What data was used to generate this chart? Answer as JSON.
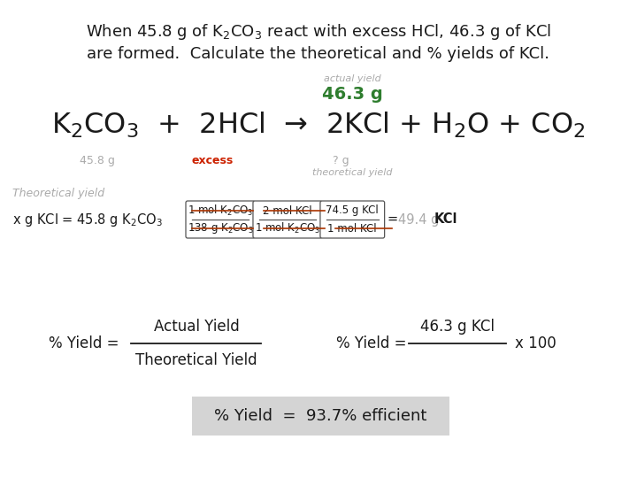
{
  "bg_color": "#ffffff",
  "dark": "#1a1a1a",
  "green": "#2e7d2e",
  "red": "#cc2200",
  "lgray": "#aaaaaa",
  "box_bg": "#d8d8d8",
  "title1": "When 45.8 g of K$_2$CO$_3$ react with excess HCl, 46.3 g of KCl",
  "title2": "are formed.  Calculate the theoretical and % yields of KCl.",
  "actual_yield_lbl": "actual yield",
  "actual_yield_val": "46.3 g",
  "equation": "K$_2$CO$_3$  +  2HCl  →  2KCl + H$_2$O + CO$_2$",
  "lbl_458": "45.8 g",
  "lbl_excess": "excess",
  "lbl_qg": "? g",
  "theo_yield_lbl": "theoretical yield",
  "theo_section": "Theoretical yield",
  "calc_prefix": "x g KCl = 45.8 g K$_2$CO$_3$",
  "f1n": "1 mol K$_2$CO$_3$",
  "f1d": "138 g K$_2$CO$_3$",
  "f2n": "2 mol KCl",
  "f2d": "1 mol K$_2$CO$_3$",
  "f3n": "74.5 g KCl",
  "f3d": "1 mol KCl",
  "result_gray": "= 49.4 g",
  "result_dark": " KCl",
  "pct_lbl": "% Yield =",
  "pct_fn": "Actual Yield",
  "pct_fd": "Theoretical Yield",
  "pct_lbl2": "% Yield =",
  "pct_fn2": "46.3 g KCl",
  "x100": "x 100",
  "final": "% Yield  =  93.7% efficient"
}
